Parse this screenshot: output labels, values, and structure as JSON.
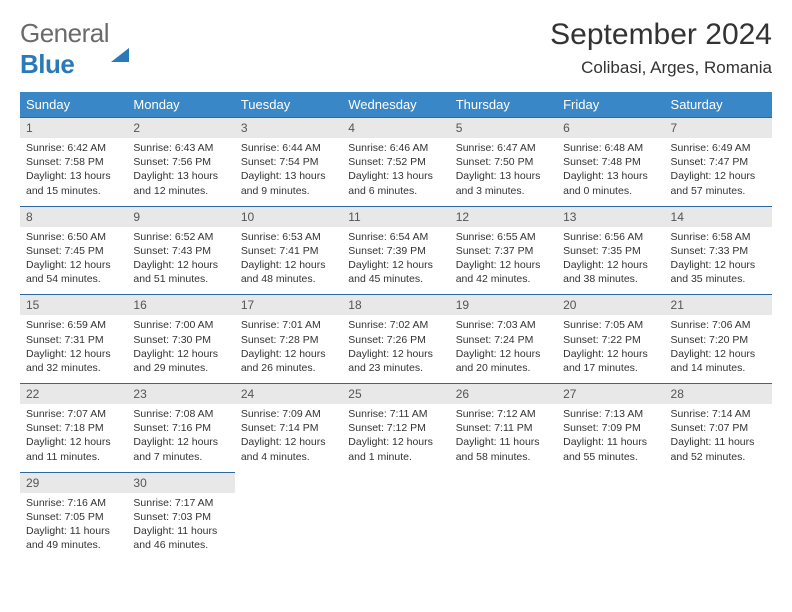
{
  "brand": {
    "part1": "General",
    "part2": "Blue"
  },
  "title": "September 2024",
  "location": "Colibasi, Arges, Romania",
  "colors": {
    "header_bg": "#3a87c8",
    "daynum_bg": "#e8e8e8",
    "row_border": "#2a6aa0",
    "brand_blue": "#2a7ab9"
  },
  "weekdays": [
    "Sunday",
    "Monday",
    "Tuesday",
    "Wednesday",
    "Thursday",
    "Friday",
    "Saturday"
  ],
  "weeks": [
    [
      {
        "day": "1",
        "sunrise": "Sunrise: 6:42 AM",
        "sunset": "Sunset: 7:58 PM",
        "daylight": "Daylight: 13 hours and 15 minutes."
      },
      {
        "day": "2",
        "sunrise": "Sunrise: 6:43 AM",
        "sunset": "Sunset: 7:56 PM",
        "daylight": "Daylight: 13 hours and 12 minutes."
      },
      {
        "day": "3",
        "sunrise": "Sunrise: 6:44 AM",
        "sunset": "Sunset: 7:54 PM",
        "daylight": "Daylight: 13 hours and 9 minutes."
      },
      {
        "day": "4",
        "sunrise": "Sunrise: 6:46 AM",
        "sunset": "Sunset: 7:52 PM",
        "daylight": "Daylight: 13 hours and 6 minutes."
      },
      {
        "day": "5",
        "sunrise": "Sunrise: 6:47 AM",
        "sunset": "Sunset: 7:50 PM",
        "daylight": "Daylight: 13 hours and 3 minutes."
      },
      {
        "day": "6",
        "sunrise": "Sunrise: 6:48 AM",
        "sunset": "Sunset: 7:48 PM",
        "daylight": "Daylight: 13 hours and 0 minutes."
      },
      {
        "day": "7",
        "sunrise": "Sunrise: 6:49 AM",
        "sunset": "Sunset: 7:47 PM",
        "daylight": "Daylight: 12 hours and 57 minutes."
      }
    ],
    [
      {
        "day": "8",
        "sunrise": "Sunrise: 6:50 AM",
        "sunset": "Sunset: 7:45 PM",
        "daylight": "Daylight: 12 hours and 54 minutes."
      },
      {
        "day": "9",
        "sunrise": "Sunrise: 6:52 AM",
        "sunset": "Sunset: 7:43 PM",
        "daylight": "Daylight: 12 hours and 51 minutes."
      },
      {
        "day": "10",
        "sunrise": "Sunrise: 6:53 AM",
        "sunset": "Sunset: 7:41 PM",
        "daylight": "Daylight: 12 hours and 48 minutes."
      },
      {
        "day": "11",
        "sunrise": "Sunrise: 6:54 AM",
        "sunset": "Sunset: 7:39 PM",
        "daylight": "Daylight: 12 hours and 45 minutes."
      },
      {
        "day": "12",
        "sunrise": "Sunrise: 6:55 AM",
        "sunset": "Sunset: 7:37 PM",
        "daylight": "Daylight: 12 hours and 42 minutes."
      },
      {
        "day": "13",
        "sunrise": "Sunrise: 6:56 AM",
        "sunset": "Sunset: 7:35 PM",
        "daylight": "Daylight: 12 hours and 38 minutes."
      },
      {
        "day": "14",
        "sunrise": "Sunrise: 6:58 AM",
        "sunset": "Sunset: 7:33 PM",
        "daylight": "Daylight: 12 hours and 35 minutes."
      }
    ],
    [
      {
        "day": "15",
        "sunrise": "Sunrise: 6:59 AM",
        "sunset": "Sunset: 7:31 PM",
        "daylight": "Daylight: 12 hours and 32 minutes."
      },
      {
        "day": "16",
        "sunrise": "Sunrise: 7:00 AM",
        "sunset": "Sunset: 7:30 PM",
        "daylight": "Daylight: 12 hours and 29 minutes."
      },
      {
        "day": "17",
        "sunrise": "Sunrise: 7:01 AM",
        "sunset": "Sunset: 7:28 PM",
        "daylight": "Daylight: 12 hours and 26 minutes."
      },
      {
        "day": "18",
        "sunrise": "Sunrise: 7:02 AM",
        "sunset": "Sunset: 7:26 PM",
        "daylight": "Daylight: 12 hours and 23 minutes."
      },
      {
        "day": "19",
        "sunrise": "Sunrise: 7:03 AM",
        "sunset": "Sunset: 7:24 PM",
        "daylight": "Daylight: 12 hours and 20 minutes."
      },
      {
        "day": "20",
        "sunrise": "Sunrise: 7:05 AM",
        "sunset": "Sunset: 7:22 PM",
        "daylight": "Daylight: 12 hours and 17 minutes."
      },
      {
        "day": "21",
        "sunrise": "Sunrise: 7:06 AM",
        "sunset": "Sunset: 7:20 PM",
        "daylight": "Daylight: 12 hours and 14 minutes."
      }
    ],
    [
      {
        "day": "22",
        "sunrise": "Sunrise: 7:07 AM",
        "sunset": "Sunset: 7:18 PM",
        "daylight": "Daylight: 12 hours and 11 minutes."
      },
      {
        "day": "23",
        "sunrise": "Sunrise: 7:08 AM",
        "sunset": "Sunset: 7:16 PM",
        "daylight": "Daylight: 12 hours and 7 minutes."
      },
      {
        "day": "24",
        "sunrise": "Sunrise: 7:09 AM",
        "sunset": "Sunset: 7:14 PM",
        "daylight": "Daylight: 12 hours and 4 minutes."
      },
      {
        "day": "25",
        "sunrise": "Sunrise: 7:11 AM",
        "sunset": "Sunset: 7:12 PM",
        "daylight": "Daylight: 12 hours and 1 minute."
      },
      {
        "day": "26",
        "sunrise": "Sunrise: 7:12 AM",
        "sunset": "Sunset: 7:11 PM",
        "daylight": "Daylight: 11 hours and 58 minutes."
      },
      {
        "day": "27",
        "sunrise": "Sunrise: 7:13 AM",
        "sunset": "Sunset: 7:09 PM",
        "daylight": "Daylight: 11 hours and 55 minutes."
      },
      {
        "day": "28",
        "sunrise": "Sunrise: 7:14 AM",
        "sunset": "Sunset: 7:07 PM",
        "daylight": "Daylight: 11 hours and 52 minutes."
      }
    ],
    [
      {
        "day": "29",
        "sunrise": "Sunrise: 7:16 AM",
        "sunset": "Sunset: 7:05 PM",
        "daylight": "Daylight: 11 hours and 49 minutes."
      },
      {
        "day": "30",
        "sunrise": "Sunrise: 7:17 AM",
        "sunset": "Sunset: 7:03 PM",
        "daylight": "Daylight: 11 hours and 46 minutes."
      },
      null,
      null,
      null,
      null,
      null
    ]
  ]
}
